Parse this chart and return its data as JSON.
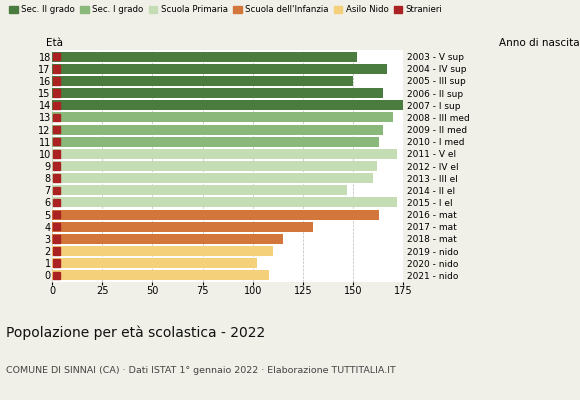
{
  "ages": [
    18,
    17,
    16,
    15,
    14,
    13,
    12,
    11,
    10,
    9,
    8,
    7,
    6,
    5,
    4,
    3,
    2,
    1,
    0
  ],
  "values": [
    152,
    167,
    150,
    165,
    175,
    170,
    165,
    163,
    172,
    162,
    160,
    147,
    172,
    163,
    130,
    115,
    110,
    102,
    108
  ],
  "right_labels": [
    "2003 - V sup",
    "2004 - IV sup",
    "2005 - III sup",
    "2006 - II sup",
    "2007 - I sup",
    "2008 - III med",
    "2009 - II med",
    "2010 - I med",
    "2011 - V el",
    "2012 - IV el",
    "2013 - III el",
    "2014 - II el",
    "2015 - I el",
    "2016 - mat",
    "2017 - mat",
    "2018 - mat",
    "2019 - nido",
    "2020 - nido",
    "2021 - nido"
  ],
  "bar_colors": [
    "#4a7c3f",
    "#4a7c3f",
    "#4a7c3f",
    "#4a7c3f",
    "#4a7c3f",
    "#8ab87a",
    "#8ab87a",
    "#8ab87a",
    "#c5ddb5",
    "#c5ddb5",
    "#c5ddb5",
    "#c5ddb5",
    "#c5ddb5",
    "#d2763b",
    "#d2763b",
    "#d2763b",
    "#f5d07a",
    "#f5d07a",
    "#f5d07a"
  ],
  "legend_labels": [
    "Sec. II grado",
    "Sec. I grado",
    "Scuola Primaria",
    "Scuola dell'Infanzia",
    "Asilo Nido",
    "Stranieri"
  ],
  "legend_colors": [
    "#4a7c3f",
    "#8ab87a",
    "#c5ddb5",
    "#d2763b",
    "#f5d07a",
    "#aa2222"
  ],
  "stranieri_color": "#aa2222",
  "title": "Popolazione per età scolastica - 2022",
  "subtitle": "COMUNE DI SINNAI (CA) · Dati ISTAT 1° gennaio 2022 · Elaborazione TUTTITALIA.IT",
  "label_eta": "Età",
  "label_anno": "Anno di nascita",
  "xlim": [
    0,
    175
  ],
  "xticks": [
    0,
    25,
    50,
    75,
    100,
    125,
    150,
    175
  ],
  "background_color": "#f0f0e8",
  "plot_bg": "#ffffff"
}
